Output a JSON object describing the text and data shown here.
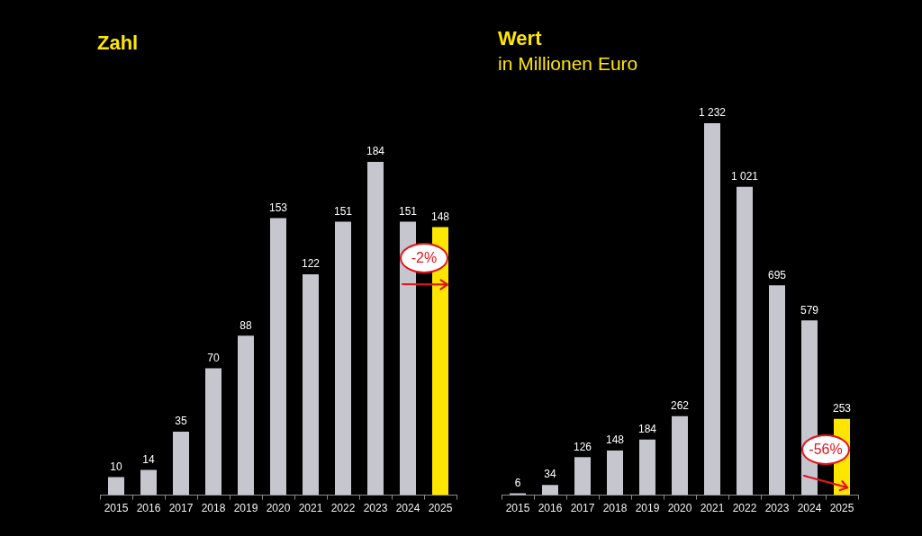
{
  "chart_data": [
    {
      "type": "bar",
      "title": "Zahl",
      "categories": [
        "2015",
        "2016",
        "2017",
        "2018",
        "2019",
        "2020",
        "2021",
        "2022",
        "2023",
        "2024",
        "2025"
      ],
      "values": [
        10,
        14,
        35,
        70,
        88,
        153,
        122,
        151,
        184,
        151,
        148
      ],
      "colors": [
        "#c6c6ce",
        "#c6c6ce",
        "#c6c6ce",
        "#c6c6ce",
        "#c6c6ce",
        "#c6c6ce",
        "#c6c6ce",
        "#c6c6ce",
        "#c6c6ce",
        "#c6c6ce",
        "#ffe600"
      ],
      "data_labels": true,
      "annotations": [
        "-2%"
      ]
    },
    {
      "type": "bar",
      "title": "Wert",
      "subtitle": "in Millionen Euro",
      "categories": [
        "2015",
        "2016",
        "2017",
        "2018",
        "2019",
        "2020",
        "2021",
        "2022",
        "2023",
        "2024",
        "2025"
      ],
      "values": [
        6,
        34,
        126,
        148,
        184,
        262,
        1232,
        1021,
        695,
        579,
        253
      ],
      "colors": [
        "#c6c6ce",
        "#c6c6ce",
        "#c6c6ce",
        "#c6c6ce",
        "#c6c6ce",
        "#c6c6ce",
        "#c6c6ce",
        "#c6c6ce",
        "#c6c6ce",
        "#c6c6ce",
        "#ffe600"
      ],
      "value_labels": [
        "6",
        "34",
        "126",
        "148",
        "184",
        "262",
        "1 232",
        "1 021",
        "695",
        "579",
        "253"
      ],
      "annotations": [
        "-56%"
      ]
    }
  ]
}
